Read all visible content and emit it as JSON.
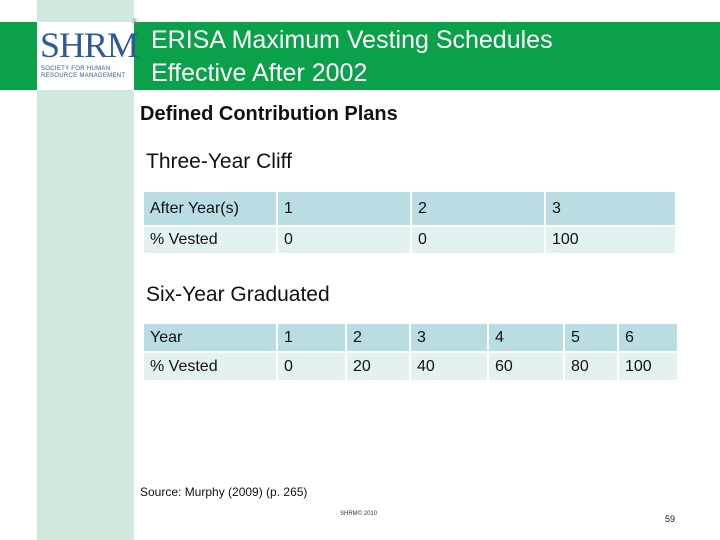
{
  "logo": {
    "word": "SHRM",
    "registered": "®",
    "tagline": [
      "SOCIETY FOR HUMAN",
      "RESOURCE MANAGEMENT"
    ]
  },
  "title": {
    "line1": "ERISA Maximum Vesting Schedules",
    "line2": "Effective After 2002"
  },
  "section_heading": "Defined Contribution Plans",
  "cliff": {
    "heading": "Three-Year Cliff",
    "header": [
      "After Year(s)",
      "1",
      "2",
      "3"
    ],
    "row": [
      "% Vested",
      "0",
      "0",
      "100"
    ]
  },
  "graduated": {
    "heading": "Six-Year Graduated",
    "header": [
      "Year",
      "1",
      "2",
      "3",
      "4",
      "5",
      "6"
    ],
    "row": [
      "% Vested",
      "0",
      "20",
      "40",
      "60",
      "80",
      "100"
    ]
  },
  "source": "Source: Murphy (2009) (p. 265)",
  "copyright": "SHRM© 2010",
  "page_number": "59",
  "colors": {
    "header_green": "#0aa14a",
    "side_band": "#cfe9dd",
    "table_header": "#b9dde2",
    "table_body": "#e3f1f3"
  }
}
